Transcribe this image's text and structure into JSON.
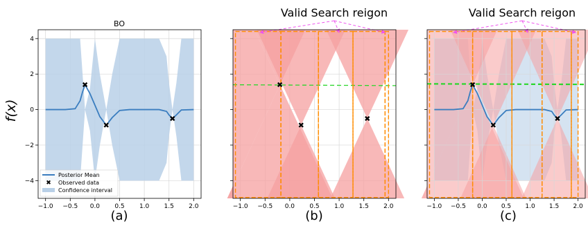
{
  "chart_data": [
    {
      "type": "line",
      "title": "BO",
      "caption": "(a)",
      "ylabel": "f(x)",
      "xlim": [
        -1.15,
        2.15
      ],
      "ylim": [
        -5.0,
        4.5
      ],
      "xticks": [
        -1.0,
        -0.5,
        0.0,
        0.5,
        1.0,
        1.5,
        2.0
      ],
      "xtick_labels": [
        "−1.0",
        "−0.5",
        "0.0",
        "0.5",
        "1.0",
        "1.5",
        "2.0"
      ],
      "yticks": [
        -4,
        -2,
        0,
        2,
        4
      ],
      "ytick_labels": [
        "−4",
        "−2",
        "0",
        "2",
        "4"
      ],
      "grid": true,
      "legend_position": "lower-left",
      "observed": {
        "x": [
          -0.2,
          0.23,
          1.57
        ],
        "y": [
          1.4,
          -0.88,
          -0.5
        ]
      },
      "series": [
        {
          "name": "Posterior Mean",
          "x": [
            -1.0,
            -0.6,
            -0.4,
            -0.3,
            -0.25,
            -0.2,
            -0.1,
            0.0,
            0.1,
            0.23,
            0.35,
            0.5,
            0.7,
            1.0,
            1.3,
            1.45,
            1.5,
            1.57,
            1.65,
            1.75,
            2.0
          ],
          "y": [
            0.0,
            0.0,
            0.05,
            0.5,
            1.0,
            1.4,
            0.9,
            0.25,
            -0.4,
            -0.88,
            -0.45,
            -0.05,
            0.0,
            0.0,
            0.0,
            -0.1,
            -0.3,
            -0.5,
            -0.3,
            -0.02,
            0.0
          ]
        },
        {
          "name": "Observed data"
        },
        {
          "name": "Confidence interval",
          "band_upper_half_width": [
            4.0,
            4.0,
            4.0,
            4.0,
            2.0,
            0.0,
            1.2,
            4.0,
            2.0,
            0.0,
            2.0,
            4.0,
            4.0,
            4.0,
            4.0,
            3.0,
            1.5,
            0.0,
            1.5,
            4.0,
            4.0
          ]
        }
      ]
    },
    {
      "type": "area",
      "caption": "(b)",
      "annotation": "Valid Search reigon",
      "xlim": [
        -1.15,
        2.15
      ],
      "ylim": [
        -5.0,
        4.5
      ],
      "xticks": [
        -1.0,
        -0.5,
        0.0,
        0.5,
        1.0,
        1.5,
        2.0
      ],
      "xtick_labels": [
        "−1.0",
        "−0.5",
        "0.0",
        "0.5",
        "1.0",
        "1.5",
        "2.0"
      ],
      "yticks": [
        -4,
        -2,
        0,
        2,
        4
      ],
      "grid": true,
      "observed": {
        "x": [
          -0.2,
          0.23,
          1.57
        ],
        "y": [
          1.4,
          -0.88,
          -0.5
        ]
      },
      "green_line": {
        "y_start": 1.4,
        "y_end": 1.35
      },
      "cone_slope": 6.0,
      "valid_regions_x": [
        [
          -1.1,
          -0.18
        ],
        [
          -0.18,
          0.58
        ],
        [
          0.58,
          1.28
        ],
        [
          1.28,
          1.93
        ],
        [
          1.93,
          2.0
        ]
      ]
    },
    {
      "type": "area",
      "caption": "(c)",
      "annotation": "Valid Search reigon",
      "xlim": [
        -1.15,
        2.15
      ],
      "ylim": [
        -5.0,
        4.5
      ],
      "xticks": [
        -1.0,
        -0.5,
        0.0,
        0.5,
        1.0,
        1.5,
        2.0
      ],
      "xtick_labels": [
        "−1.0",
        "−0.5",
        "0.0",
        "0.5",
        "1.0",
        "1.5",
        "2.0"
      ],
      "yticks": [
        -4,
        -2,
        0,
        2,
        4
      ],
      "grid": true,
      "observed": {
        "x": [
          -0.2,
          0.23,
          1.57
        ],
        "y": [
          1.4,
          -0.88,
          -0.5
        ]
      },
      "green_line": {
        "y_start": 1.45,
        "y_end": 1.42
      },
      "cone_slope": 6.0,
      "valid_regions_x": [
        [
          -1.1,
          -0.2
        ],
        [
          -0.2,
          0.62
        ],
        [
          0.62,
          1.25
        ],
        [
          1.25,
          1.86
        ],
        [
          1.86,
          2.0
        ]
      ]
    }
  ],
  "colors": {
    "mean": "#3a7dbf",
    "band": "#b9d0e7",
    "pink": "#f5a0a0",
    "green": "#2bd62b",
    "orange": "#ff8c00",
    "magenta": "#ee55ee",
    "grid": "#d7d7d7"
  }
}
